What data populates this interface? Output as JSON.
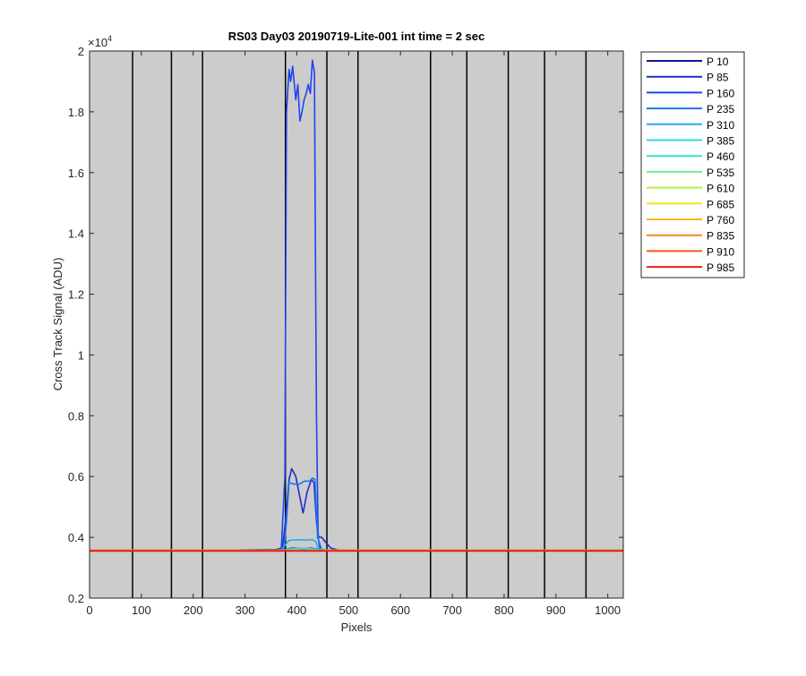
{
  "chart_data": {
    "type": "line",
    "title": "RS03 Day03 20190719-Lite-001 int time = 2 sec",
    "xlabel": "Pixels",
    "ylabel": "Cross Track Signal (ADU)",
    "y_exponent_label": "×10",
    "y_exponent_power": "4",
    "xlim": [
      0,
      1030
    ],
    "ylim": [
      0.2,
      2.0
    ],
    "x_ticks": [
      0,
      100,
      200,
      300,
      400,
      500,
      600,
      700,
      800,
      900,
      1000
    ],
    "x_tick_labels": [
      "0",
      "100",
      "200",
      "300",
      "400",
      "500",
      "600",
      "700",
      "800",
      "900",
      "1000"
    ],
    "y_ticks": [
      0.2,
      0.4,
      0.6,
      0.8,
      1.0,
      1.2,
      1.4,
      1.6,
      1.8,
      2.0
    ],
    "y_tick_labels": [
      "0.2",
      "0.4",
      "0.6",
      "0.8",
      "1",
      "1.2",
      "1.4",
      "1.6",
      "1.8",
      "2"
    ],
    "plot_background": "#cccccc",
    "vertical_lines_x": [
      83,
      158,
      218,
      378,
      458,
      518,
      658,
      728,
      808,
      878,
      958
    ],
    "legend_position": "outside top-right",
    "series": [
      {
        "name": "P 10",
        "color": "#1414a0",
        "x": [
          0,
          365,
          378,
          388,
          398,
          408,
          418,
          428,
          438,
          445,
          1030
        ],
        "y": [
          0.357,
          0.357,
          0.359,
          0.364,
          0.365,
          0.363,
          0.363,
          0.364,
          0.362,
          0.357,
          0.357
        ]
      },
      {
        "name": "P 85",
        "color": "#1f2bd0",
        "x": [
          0,
          220,
          360,
          372,
          378,
          385,
          390,
          398,
          405,
          412,
          420,
          428,
          433,
          438,
          442,
          448,
          455,
          465,
          480,
          1030
        ],
        "y": [
          0.357,
          0.357,
          0.36,
          0.365,
          0.45,
          0.59,
          0.626,
          0.6,
          0.54,
          0.48,
          0.55,
          0.59,
          0.58,
          0.45,
          0.4,
          0.4,
          0.385,
          0.365,
          0.358,
          0.357
        ]
      },
      {
        "name": "P 160",
        "color": "#1f44f0",
        "x": [
          0,
          360,
          370,
          377,
          380,
          385,
          388,
          392,
          398,
          402,
          406,
          410,
          414,
          418,
          422,
          426,
          430,
          434,
          436,
          438,
          441,
          445,
          460,
          1030
        ],
        "y": [
          0.357,
          0.357,
          0.362,
          0.6,
          1.8,
          1.94,
          1.9,
          1.95,
          1.84,
          1.89,
          1.77,
          1.8,
          1.84,
          1.86,
          1.89,
          1.86,
          1.97,
          1.93,
          1.3,
          0.8,
          0.4,
          0.36,
          0.357,
          0.357
        ]
      },
      {
        "name": "P 235",
        "color": "#1a78e6",
        "x": [
          0,
          365,
          375,
          380,
          385,
          395,
          405,
          415,
          425,
          430,
          435,
          440,
          448,
          460,
          1030
        ],
        "y": [
          0.357,
          0.357,
          0.36,
          0.45,
          0.58,
          0.575,
          0.575,
          0.585,
          0.585,
          0.595,
          0.59,
          0.4,
          0.36,
          0.357,
          0.357
        ]
      },
      {
        "name": "P 310",
        "color": "#22aef0",
        "x": [
          0,
          370,
          380,
          385,
          400,
          420,
          430,
          437,
          442,
          455,
          1030
        ],
        "y": [
          0.357,
          0.357,
          0.38,
          0.39,
          0.392,
          0.391,
          0.393,
          0.385,
          0.362,
          0.357,
          0.357
        ]
      },
      {
        "name": "P 385",
        "color": "#2ad8e6",
        "x": [
          0,
          375,
          385,
          400,
          420,
          435,
          445,
          1030
        ],
        "y": [
          0.357,
          0.357,
          0.362,
          0.364,
          0.363,
          0.362,
          0.357,
          0.357
        ]
      },
      {
        "name": "P 460",
        "color": "#30e8c4",
        "x": [
          0,
          1030
        ],
        "y": [
          0.357,
          0.357
        ]
      },
      {
        "name": "P 535",
        "color": "#6cf09a",
        "x": [
          0,
          1030
        ],
        "y": [
          0.357,
          0.357
        ]
      },
      {
        "name": "P 610",
        "color": "#b0f040",
        "x": [
          0,
          1030
        ],
        "y": [
          0.357,
          0.357
        ]
      },
      {
        "name": "P 685",
        "color": "#f4e41a",
        "x": [
          0,
          1030
        ],
        "y": [
          0.357,
          0.357
        ]
      },
      {
        "name": "P 760",
        "color": "#f4b818",
        "x": [
          0,
          1030
        ],
        "y": [
          0.357,
          0.357
        ]
      },
      {
        "name": "P 835",
        "color": "#f48a1c",
        "x": [
          0,
          1030
        ],
        "y": [
          0.357,
          0.357
        ]
      },
      {
        "name": "P 910",
        "color": "#f05a1c",
        "x": [
          0,
          1030
        ],
        "y": [
          0.357,
          0.357
        ]
      },
      {
        "name": "P 985",
        "color": "#e41e14",
        "x": [
          0,
          1030
        ],
        "y": [
          0.355,
          0.355
        ]
      }
    ]
  }
}
